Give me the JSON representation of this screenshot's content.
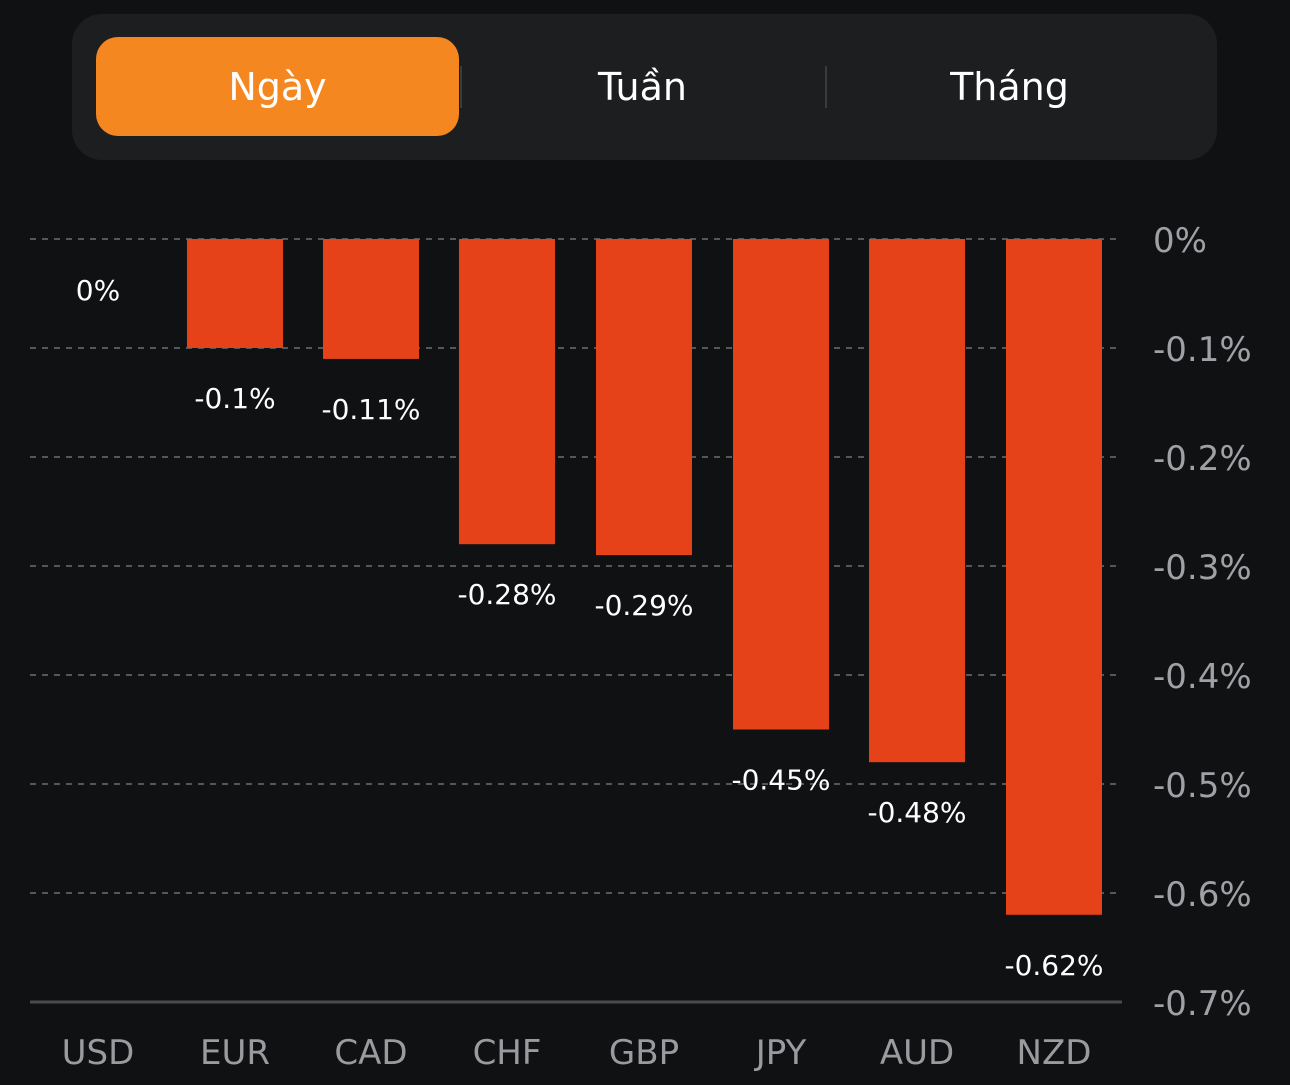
{
  "tabs": [
    {
      "label": "Ngày",
      "active": true
    },
    {
      "label": "Tuần",
      "active": false
    },
    {
      "label": "Tháng",
      "active": false
    }
  ],
  "colors": {
    "accent": "#f58720",
    "bar": "#e5421a",
    "background": "#101113"
  },
  "chart_data": {
    "type": "bar",
    "categories": [
      "USD",
      "EUR",
      "CAD",
      "CHF",
      "GBP",
      "JPY",
      "AUD",
      "NZD"
    ],
    "values": [
      0,
      -0.1,
      -0.11,
      -0.28,
      -0.29,
      -0.45,
      -0.48,
      -0.62
    ],
    "data_labels": [
      "0%",
      "-0.1%",
      "-0.11%",
      "-0.28%",
      "-0.29%",
      "-0.45%",
      "-0.48%",
      "-0.62%"
    ],
    "y_ticks": [
      0,
      -0.1,
      -0.2,
      -0.3,
      -0.4,
      -0.5,
      -0.6,
      -0.7
    ],
    "y_tick_labels": [
      "0%",
      "-0.1%",
      "-0.2%",
      "-0.3%",
      "-0.4%",
      "-0.5%",
      "-0.6%",
      "-0.7%"
    ],
    "ylim": [
      -0.7,
      0
    ],
    "y_axis_position": "right",
    "grid": true
  }
}
